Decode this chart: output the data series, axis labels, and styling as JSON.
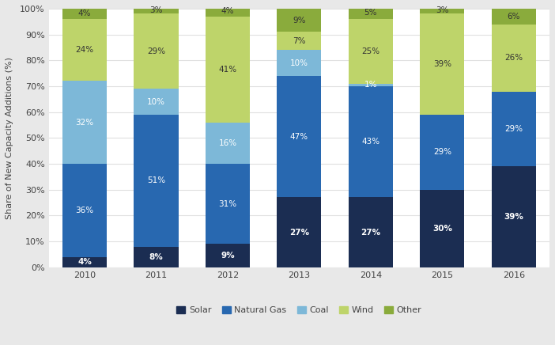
{
  "years": [
    "2010",
    "2011",
    "2012",
    "2013",
    "2014",
    "2015",
    "2016"
  ],
  "series": {
    "Solar": [
      4,
      8,
      9,
      27,
      27,
      30,
      39
    ],
    "Natural Gas": [
      36,
      51,
      31,
      47,
      43,
      29,
      29
    ],
    "Coal": [
      32,
      10,
      16,
      10,
      1,
      0,
      0
    ],
    "Wind": [
      24,
      29,
      41,
      7,
      25,
      39,
      26
    ],
    "Other": [
      4,
      3,
      4,
      9,
      5,
      3,
      6
    ]
  },
  "colors": {
    "Solar": "#1b2d52",
    "Natural Gas": "#2868b0",
    "Coal": "#7db8d8",
    "Wind": "#bed46a",
    "Other": "#8aab3c"
  },
  "label_colors": {
    "Solar": "white",
    "Natural Gas": "white",
    "Coal": "white",
    "Wind": "#333333",
    "Other": "#333333"
  },
  "label_bold": {
    "Solar": true,
    "Natural Gas": false,
    "Coal": false,
    "Wind": false,
    "Other": false
  },
  "ylabel": "Share of New Capacity Additions (%)",
  "outer_background": "#e8e8e8",
  "plot_background": "#ffffff",
  "legend_order": [
    "Solar",
    "Natural Gas",
    "Coal",
    "Wind",
    "Other"
  ],
  "bar_width": 0.62
}
